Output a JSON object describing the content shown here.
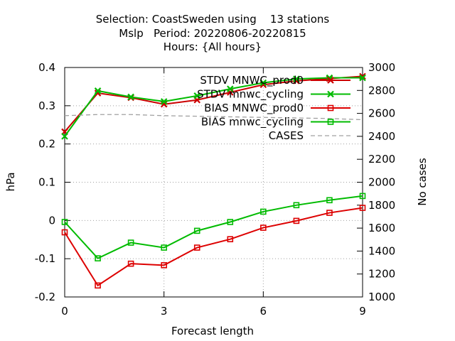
{
  "chart_data": {
    "type": "line",
    "title_lines": [
      "Selection: CoastSweden using    13 stations",
      "Mslp   Period: 20220806-20220815",
      "Hours: {All hours}"
    ],
    "xlabel": "Forecast length",
    "ylabel": "hPa",
    "y2label": "No cases",
    "xlim": [
      0,
      9
    ],
    "ylim": [
      -0.2,
      0.4
    ],
    "y2lim": [
      1000,
      3000
    ],
    "x_ticks": [
      0,
      3,
      6,
      9
    ],
    "y_ticks": [
      -0.2,
      -0.1,
      0,
      0.1,
      0.2,
      0.3,
      0.4
    ],
    "y_tick_labels": [
      "-0.2",
      "-0.1",
      "0",
      "0.1",
      "0.2",
      "0.3",
      "0.4"
    ],
    "y2_ticks": [
      1000,
      1200,
      1400,
      1600,
      1800,
      2000,
      2200,
      2400,
      2600,
      2800,
      3000
    ],
    "grid": true,
    "legend_position": "top-right",
    "x": [
      0,
      1,
      2,
      3,
      4,
      5,
      6,
      7,
      8,
      9
    ],
    "series": [
      {
        "name": "STDV MNWC_prod0",
        "axis": "y",
        "marker": "x",
        "color": "#cc0000",
        "values": [
          0.232,
          0.333,
          0.321,
          0.304,
          0.315,
          0.335,
          0.355,
          0.365,
          0.371,
          0.377
        ]
      },
      {
        "name": "STDV mnwc_cycling",
        "axis": "y",
        "marker": "x",
        "color": "#00bb00",
        "values": [
          0.22,
          0.339,
          0.323,
          0.311,
          0.326,
          0.344,
          0.36,
          0.37,
          0.373,
          0.373
        ]
      },
      {
        "name": "BIAS MNWC_prod0",
        "axis": "y",
        "marker": "square",
        "color": "#dd0000",
        "values": [
          -0.031,
          -0.17,
          -0.113,
          -0.117,
          -0.071,
          -0.049,
          -0.019,
          -0.001,
          0.02,
          0.033
        ]
      },
      {
        "name": "BIAS mnwc_cycling",
        "axis": "y",
        "marker": "square",
        "color": "#00bb00",
        "values": [
          -0.004,
          -0.099,
          -0.058,
          -0.071,
          -0.027,
          -0.004,
          0.023,
          0.04,
          0.053,
          0.064
        ]
      },
      {
        "name": "CASES",
        "axis": "y2",
        "marker": "none",
        "dashed": true,
        "color": "#a0a0a0",
        "values": [
          2580,
          2590,
          2590,
          2580,
          2575,
          2570,
          2565,
          2560,
          2555,
          2545
        ]
      }
    ]
  }
}
